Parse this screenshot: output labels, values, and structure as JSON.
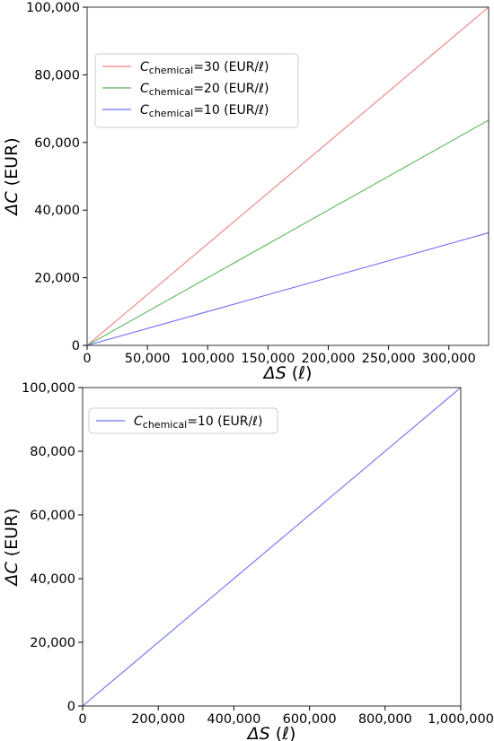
{
  "chart_data": [
    {
      "type": "line",
      "xlabel_symbol": "ΔS",
      "xlabel_unit": "(ℓ)",
      "ylabel_symbol": "ΔC",
      "ylabel_unit": "(EUR)",
      "xlim": [
        0,
        333000
      ],
      "ylim": [
        0,
        100000
      ],
      "x_ticks": [
        0,
        50000,
        100000,
        150000,
        200000,
        250000,
        300000
      ],
      "x_tick_labels": [
        "0",
        "50,000",
        "100,000",
        "150,000",
        "200,000",
        "250,000",
        "300,000"
      ],
      "y_ticks": [
        0,
        20000,
        40000,
        60000,
        80000,
        100000
      ],
      "y_tick_labels": [
        "0",
        "20,000",
        "40,000",
        "60,000",
        "80,000",
        "100,000"
      ],
      "reference_line": {
        "y": 100000,
        "style": "dotted",
        "color": "#000000"
      },
      "grid": false,
      "legend_position": "upper-left",
      "series": [
        {
          "name_prefix": "C",
          "name_sub": "chemical",
          "name_suffix": "=30 (EUR/ℓ)",
          "color": "#f08080",
          "x": [
            0,
            333000
          ],
          "y": [
            0,
            100000
          ]
        },
        {
          "name_prefix": "C",
          "name_sub": "chemical",
          "name_suffix": "=20 (EUR/ℓ)",
          "color": "#5cb85c",
          "x": [
            0,
            333000
          ],
          "y": [
            0,
            66600
          ]
        },
        {
          "name_prefix": "C",
          "name_sub": "chemical",
          "name_suffix": "=10 (EUR/ℓ)",
          "color": "#6e6ef5",
          "x": [
            0,
            333000
          ],
          "y": [
            0,
            33300
          ]
        }
      ]
    },
    {
      "type": "line",
      "xlabel_symbol": "ΔS",
      "xlabel_unit": "(ℓ)",
      "ylabel_symbol": "ΔC",
      "ylabel_unit": "(EUR)",
      "xlim": [
        0,
        1000000
      ],
      "ylim": [
        0,
        100000
      ],
      "x_ticks": [
        0,
        200000,
        400000,
        600000,
        800000,
        1000000
      ],
      "x_tick_labels": [
        "0",
        "200,000",
        "400,000",
        "600,000",
        "800,000",
        "1,000,000"
      ],
      "y_ticks": [
        0,
        20000,
        40000,
        60000,
        80000,
        100000
      ],
      "y_tick_labels": [
        "0",
        "20,000",
        "40,000",
        "60,000",
        "80,000",
        "100,000"
      ],
      "reference_line": {
        "y": 100000,
        "style": "dotted",
        "color": "#000000"
      },
      "grid": false,
      "legend_position": "upper-left",
      "series": [
        {
          "name_prefix": "C",
          "name_sub": "chemical",
          "name_suffix": "=10 (EUR/ℓ)",
          "color": "#6e6ef5",
          "x": [
            0,
            1000000
          ],
          "y": [
            0,
            100000
          ]
        }
      ]
    }
  ]
}
